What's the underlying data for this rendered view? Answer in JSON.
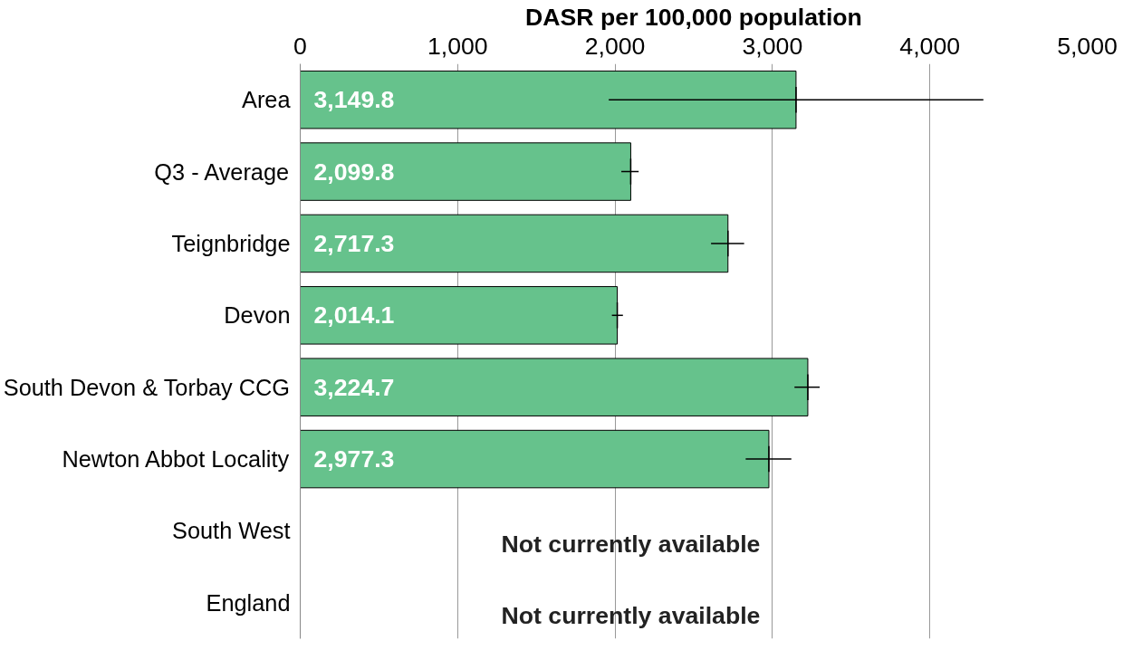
{
  "chart_data": {
    "type": "bar",
    "orientation": "horizontal",
    "xlabel": "DASR per 100,000 population",
    "categories": [
      "Area",
      "Q3 - Average",
      "Teignbridge",
      "Devon",
      "South Devon & Torbay CCG",
      "Newton Abbot Locality",
      "South West",
      "England"
    ],
    "values": [
      3149.8,
      2099.8,
      2717.3,
      2014.1,
      3224.7,
      2977.3,
      null,
      null
    ],
    "value_labels": [
      "3,149.8",
      "2,099.8",
      "2,717.3",
      "2,014.1",
      "3,224.7",
      "2,977.3",
      null,
      null
    ],
    "errors": [
      [
        1960,
        4340
      ],
      [
        2040,
        2150
      ],
      [
        2610,
        2820
      ],
      [
        1980,
        2050
      ],
      [
        3140,
        3300
      ],
      [
        2830,
        3120
      ],
      null,
      null
    ],
    "color": "#66c28c",
    "xlim": [
      0,
      5000
    ],
    "xticks": [
      {
        "value": 0,
        "label": "0"
      },
      {
        "value": 1000,
        "label": "1,000"
      },
      {
        "value": 2000,
        "label": "2,000"
      },
      {
        "value": 3000,
        "label": "3,000"
      },
      {
        "value": 4000,
        "label": "4,000"
      },
      {
        "value": 5000,
        "label": "5,000"
      }
    ],
    "grid": "x",
    "annotations": [
      "Not currently available",
      "Not currently available"
    ]
  }
}
